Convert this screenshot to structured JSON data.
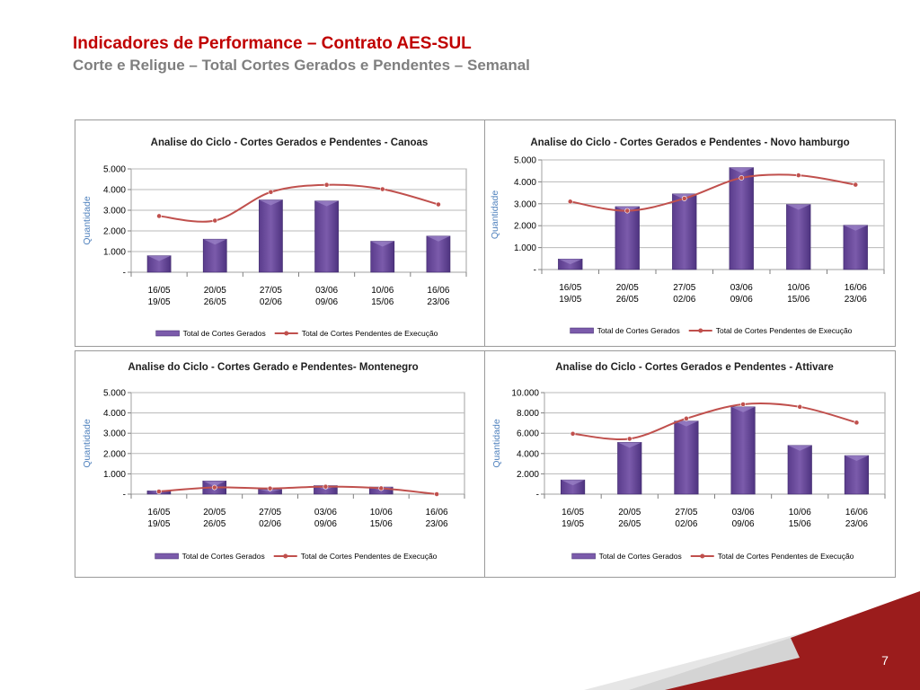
{
  "slide": {
    "title": "Indicadores de Performance – Contrato AES-SUL",
    "subtitle": "Corte e Religue – Total Cortes Gerados e Pendentes – Semanal",
    "page_number": "7"
  },
  "colors": {
    "title": "#c00000",
    "subtitle": "#7f7f7f",
    "bar": "#7b5bab",
    "line": "#c0504d",
    "axis_label": "#4f81bd",
    "footer_red": "#9b1c1c"
  },
  "chart_data": [
    {
      "type": "bar",
      "title": "Analise do Ciclo - Cortes Gerados e Pendentes - Canoas",
      "ylabel": "Quantidade",
      "ylim": [
        0,
        5000
      ],
      "yticks": [
        "-",
        "1.000",
        "2.000",
        "3.000",
        "4.000",
        "5.000"
      ],
      "categories": [
        [
          "16/05",
          "19/05"
        ],
        [
          "20/05",
          "26/05"
        ],
        [
          "27/05",
          "02/06"
        ],
        [
          "03/06",
          "09/06"
        ],
        [
          "10/06",
          "15/06"
        ],
        [
          "16/06",
          "23/06"
        ]
      ],
      "grid": true,
      "legend_position": "bottom",
      "series": [
        {
          "name": "Total de Cortes Gerados",
          "type": "bar",
          "values": [
            800,
            1600,
            3500,
            3450,
            1500,
            1750
          ]
        },
        {
          "name": "Total de Cortes Pendentes de Execução",
          "type": "line",
          "values": [
            2720,
            2500,
            3880,
            4230,
            4020,
            3280
          ]
        }
      ]
    },
    {
      "type": "bar",
      "title": "Analise do Ciclo - Cortes Gerados e Pendentes - Novo hamburgo",
      "ylabel": "Quantidade",
      "ylim": [
        0,
        5000
      ],
      "yticks": [
        "-",
        "1.000",
        "2.000",
        "3.000",
        "4.000",
        "5.000"
      ],
      "categories": [
        [
          "16/05",
          "19/05"
        ],
        [
          "20/05",
          "26/05"
        ],
        [
          "27/05",
          "02/06"
        ],
        [
          "03/06",
          "09/06"
        ],
        [
          "10/06",
          "15/06"
        ],
        [
          "16/06",
          "23/06"
        ]
      ],
      "grid": true,
      "legend_position": "bottom",
      "series": [
        {
          "name": "Total de Cortes Gerados",
          "type": "bar",
          "values": [
            480,
            2870,
            3450,
            4650,
            2970,
            2020
          ]
        },
        {
          "name": "Total de Cortes Pendentes de Execução",
          "type": "line",
          "values": [
            3100,
            2680,
            3240,
            4180,
            4300,
            3870
          ]
        }
      ]
    },
    {
      "type": "bar",
      "title": "Analise do Ciclo - Cortes Gerado e Pendentes- Montenegro",
      "ylabel": "Quantidade",
      "ylim": [
        0,
        5000
      ],
      "yticks": [
        "-",
        "1.000",
        "2.000",
        "3.000",
        "4.000",
        "5.000"
      ],
      "categories": [
        [
          "16/05",
          "19/05"
        ],
        [
          "20/05",
          "26/05"
        ],
        [
          "27/05",
          "02/06"
        ],
        [
          "03/06",
          "09/06"
        ],
        [
          "10/06",
          "15/06"
        ],
        [
          "16/06",
          "23/06"
        ]
      ],
      "grid": true,
      "legend_position": "bottom",
      "series": [
        {
          "name": "Total de Cortes Gerados",
          "type": "bar",
          "values": [
            160,
            650,
            230,
            420,
            350,
            0
          ]
        },
        {
          "name": "Total de Cortes Pendentes de Execução",
          "type": "line",
          "values": [
            130,
            330,
            280,
            370,
            290,
            0
          ]
        }
      ]
    },
    {
      "type": "bar",
      "title": "Analise do Ciclo - Cortes Gerados e Pendentes - Attivare",
      "ylabel": "Quantidade",
      "ylim": [
        0,
        10000
      ],
      "yticks": [
        "-",
        "2.000",
        "4.000",
        "6.000",
        "8.000",
        "10.000"
      ],
      "categories": [
        [
          "16/05",
          "19/05"
        ],
        [
          "20/05",
          "26/05"
        ],
        [
          "27/05",
          "02/06"
        ],
        [
          "03/06",
          "09/06"
        ],
        [
          "10/06",
          "15/06"
        ],
        [
          "16/06",
          "23/06"
        ]
      ],
      "grid": true,
      "legend_position": "bottom",
      "series": [
        {
          "name": "Total de Cortes Gerados",
          "type": "bar",
          "values": [
            1400,
            5100,
            7200,
            8600,
            4800,
            3800
          ]
        },
        {
          "name": "Total de Cortes Pendentes de Execução",
          "type": "line",
          "values": [
            5950,
            5450,
            7450,
            8850,
            8600,
            7050
          ]
        }
      ]
    }
  ]
}
